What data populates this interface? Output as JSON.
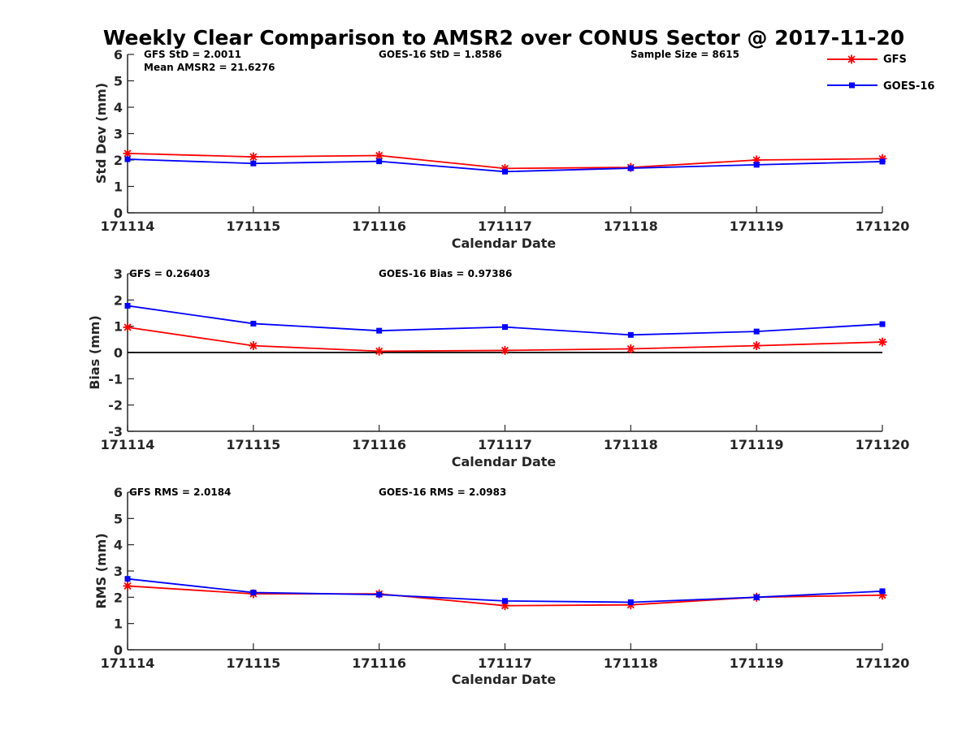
{
  "title": "Weekly Clear Comparison to AMSR2 over CONUS Sector @ 2017-11-20",
  "legend": [
    {
      "name": "GFS",
      "color": "#ff0000",
      "marker": "asterisk"
    },
    {
      "name": "GOES-16",
      "color": "#0000ff",
      "marker": "square"
    }
  ],
  "chart_data": [
    {
      "type": "line",
      "categories": [
        "171114",
        "171115",
        "171116",
        "171117",
        "171118",
        "171119",
        "171120"
      ],
      "xlabel": "Calendar Date",
      "ylabel": "Std Dev (mm)",
      "ylim": [
        0,
        6
      ],
      "yticks": [
        "0",
        "1",
        "2",
        "3",
        "4",
        "5",
        "6"
      ],
      "annotations": [
        "GFS StD = 2.0011",
        "Mean AMSR2 = 21.6276",
        "GOES-16 StD = 1.8586",
        "Sample Size = 8615"
      ],
      "series": [
        {
          "name": "GFS",
          "color": "#ff0000",
          "values": [
            2.25,
            2.12,
            2.17,
            1.68,
            1.72,
            2.0,
            2.05
          ]
        },
        {
          "name": "GOES-16",
          "color": "#0000ff",
          "values": [
            2.03,
            1.87,
            1.95,
            1.56,
            1.69,
            1.82,
            1.94
          ]
        }
      ]
    },
    {
      "type": "line",
      "categories": [
        "171114",
        "171115",
        "171116",
        "171117",
        "171118",
        "171119",
        "171120"
      ],
      "xlabel": "Calendar Date",
      "ylabel": "Bias (mm)",
      "ylim": [
        -3,
        3
      ],
      "yticks": [
        "-3",
        "-2",
        "-1",
        "0",
        "1",
        "2",
        "3"
      ],
      "zero_line": true,
      "annotations": [
        "GFS = 0.26403",
        "GOES-16 Bias  = 0.97386"
      ],
      "series": [
        {
          "name": "GFS",
          "color": "#ff0000",
          "values": [
            0.96,
            0.26,
            0.05,
            0.08,
            0.14,
            0.26,
            0.4
          ]
        },
        {
          "name": "GOES-16",
          "color": "#0000ff",
          "values": [
            1.78,
            1.1,
            0.83,
            0.97,
            0.67,
            0.8,
            1.08
          ]
        }
      ]
    },
    {
      "type": "line",
      "categories": [
        "171114",
        "171115",
        "171116",
        "171117",
        "171118",
        "171119",
        "171120"
      ],
      "xlabel": "Calendar Date",
      "ylabel": "RMS (mm)",
      "ylim": [
        0,
        6
      ],
      "yticks": [
        "0",
        "1",
        "2",
        "3",
        "4",
        "5",
        "6"
      ],
      "annotations": [
        "GFS RMS = 2.0184",
        "GOES-16 RMS = 2.0983"
      ],
      "series": [
        {
          "name": "GFS",
          "color": "#ff0000",
          "values": [
            2.43,
            2.13,
            2.13,
            1.68,
            1.71,
            2.0,
            2.08
          ]
        },
        {
          "name": "GOES-16",
          "color": "#0000ff",
          "values": [
            2.7,
            2.18,
            2.1,
            1.86,
            1.81,
            2.0,
            2.23
          ]
        }
      ]
    }
  ]
}
